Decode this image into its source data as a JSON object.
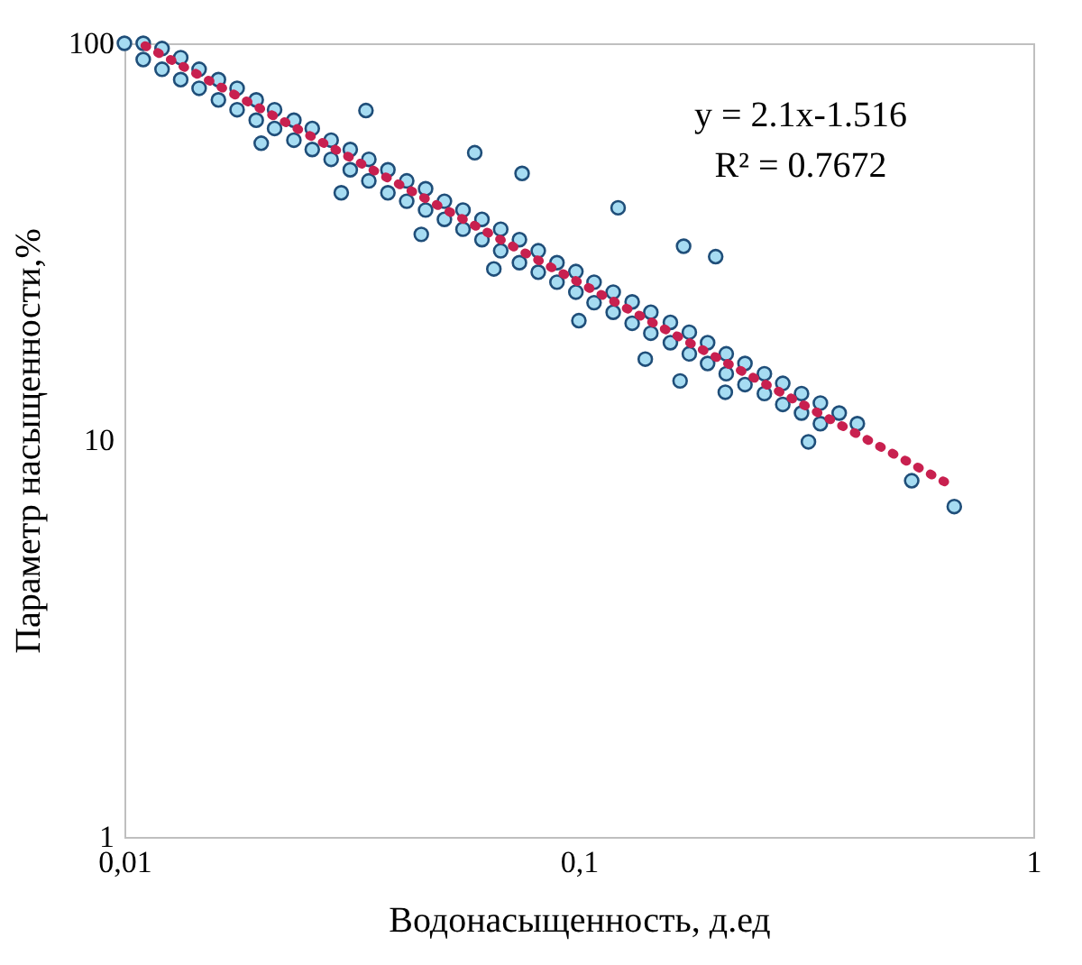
{
  "chart_data": {
    "type": "scatter",
    "xlabel": "Водонасыщенность, д.ед",
    "ylabel": "Параметр насыщенности,%",
    "annotations": [
      "y = 2.1x-1.516",
      "R² = 0.7672"
    ],
    "xlim": [
      0.01,
      1
    ],
    "ylim": [
      1,
      100
    ],
    "log": "xy",
    "xticks": [
      {
        "value": 0.01,
        "label": "0,01"
      },
      {
        "value": 0.1,
        "label": "0,1"
      },
      {
        "value": 1,
        "label": "1"
      }
    ],
    "yticks": [
      1,
      10,
      100
    ],
    "grid": false,
    "series": [
      {
        "color": "#a6dcf2",
        "marker": "circle",
        "x": [
          0.01,
          0.011,
          0.011,
          0.0121,
          0.0121,
          0.0133,
          0.0133,
          0.0146,
          0.0146,
          0.0161,
          0.0161,
          0.0177,
          0.0177,
          0.0195,
          0.0195,
          0.0214,
          0.0214,
          0.0236,
          0.0236,
          0.0259,
          0.0259,
          0.0285,
          0.0285,
          0.0314,
          0.0314,
          0.0345,
          0.0345,
          0.038,
          0.038,
          0.0418,
          0.0418,
          0.046,
          0.046,
          0.0506,
          0.0506,
          0.0556,
          0.0556,
          0.0612,
          0.0612,
          0.0673,
          0.0673,
          0.074,
          0.074,
          0.0814,
          0.0814,
          0.0895,
          0.0895,
          0.0985,
          0.0985,
          0.108,
          0.108,
          0.119,
          0.119,
          0.131,
          0.131,
          0.144,
          0.144,
          0.159,
          0.159,
          0.175,
          0.175,
          0.192,
          0.192,
          0.211,
          0.211,
          0.232,
          0.232,
          0.256,
          0.256,
          0.281,
          0.281,
          0.309,
          0.309,
          0.34,
          0.34,
          0.374,
          0.41,
          0.034,
          0.075,
          0.122,
          0.17,
          0.2,
          0.059,
          0.167,
          0.21,
          0.32,
          0.54,
          0.67,
          0.02,
          0.03,
          0.045,
          0.065,
          0.1,
          0.14
        ],
        "values": [
          100,
          100,
          91,
          97,
          86,
          92,
          81,
          86,
          77,
          81,
          72,
          77,
          68,
          72,
          64,
          68,
          61,
          64,
          57,
          61,
          54,
          57,
          51,
          54,
          48,
          51,
          45,
          48,
          42,
          45,
          40,
          43,
          38,
          40,
          36,
          38,
          34,
          36,
          32,
          34,
          30,
          32,
          28,
          30,
          26.5,
          28,
          25,
          26.6,
          23.6,
          25,
          22.2,
          23.6,
          21,
          22.3,
          19.7,
          21,
          18.6,
          19.8,
          17.6,
          18.7,
          16.5,
          17.6,
          15.6,
          16.5,
          14.7,
          15.6,
          13.8,
          14.7,
          13.1,
          13.9,
          12.3,
          13.1,
          11.7,
          12.4,
          11,
          11.7,
          11,
          67.7,
          47,
          38.5,
          30.8,
          29,
          53,
          14.1,
          13.2,
          9.9,
          7.9,
          6.8,
          56,
          42,
          33,
          27,
          20,
          16
        ]
      },
      {
        "type": "line",
        "color": "#c8204f",
        "line_style": "dotted",
        "x": [
          0.0111,
          0.658
        ],
        "values": [
          98.6,
          7.7
        ]
      }
    ]
  }
}
